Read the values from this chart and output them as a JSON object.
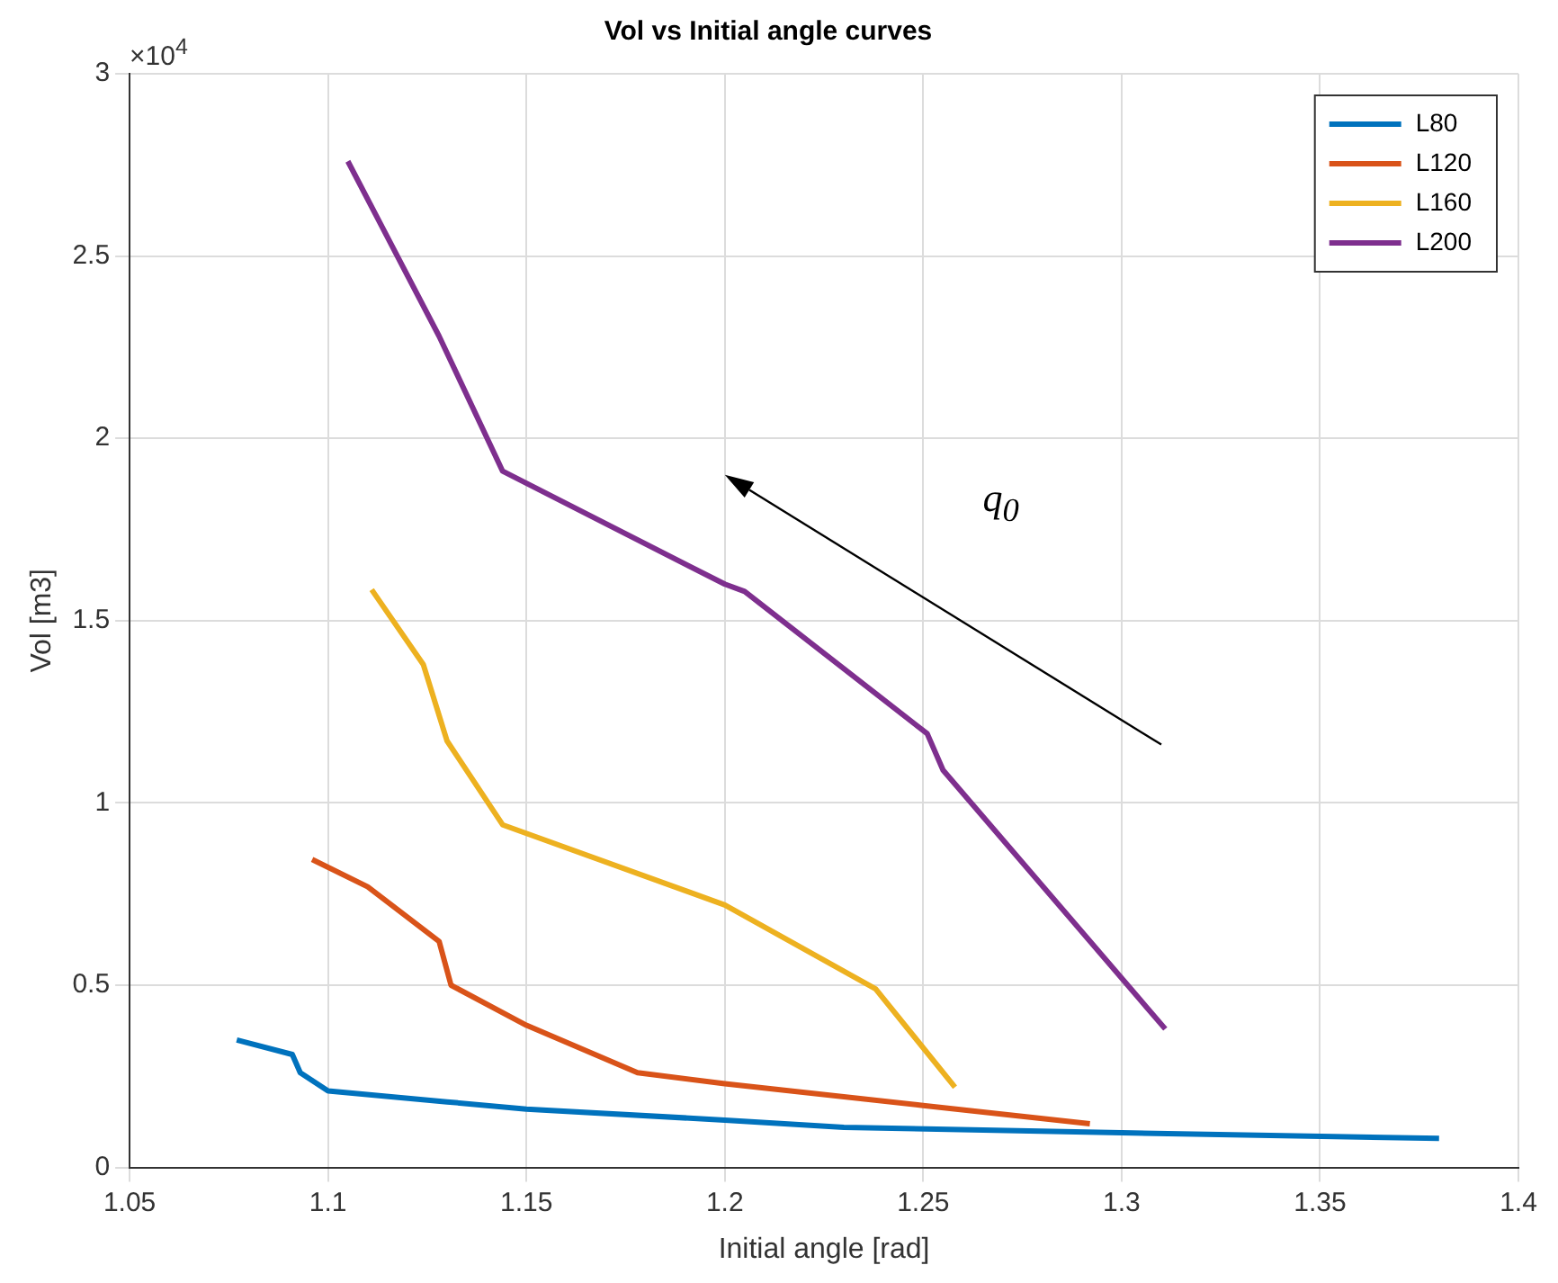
{
  "chart_data": {
    "type": "line",
    "title": "Vol vs Initial angle curves",
    "xlabel": "Initial angle [rad]",
    "ylabel": "Vol [m3]",
    "annotations": [
      "×10$^{4}$",
      "q$_{0}$"
    ],
    "xlim": [
      1.05,
      1.4
    ],
    "xticks": [
      1.05,
      1.1,
      1.15,
      1.2,
      1.25,
      1.3,
      1.35,
      1.4
    ],
    "ylim": [
      0,
      3
    ],
    "yticks": [
      0,
      0.5,
      1,
      1.5,
      2,
      2.5,
      3
    ],
    "grid": true,
    "legend": "top right",
    "marker": "none",
    "line_style": "solid",
    "series": [
      {
        "name": "L80",
        "color": "#0072bd",
        "x": [
          1.077,
          1.091,
          1.093,
          1.1,
          1.13,
          1.15,
          1.2,
          1.23,
          1.3,
          1.38
        ],
        "values": [
          0.35,
          0.31,
          0.26,
          0.21,
          0.18,
          0.16,
          0.13,
          0.11,
          0.095,
          0.08
        ]
      },
      {
        "name": "L120",
        "color": "#d95319",
        "x": [
          1.096,
          1.11,
          1.128,
          1.131,
          1.15,
          1.178,
          1.2,
          1.25,
          1.292
        ],
        "values": [
          0.845,
          0.77,
          0.62,
          0.5,
          0.39,
          0.26,
          0.23,
          0.17,
          0.12
        ]
      },
      {
        "name": "L160",
        "color": "#edb120",
        "x": [
          1.111,
          1.124,
          1.13,
          1.144,
          1.2,
          1.238,
          1.258
        ],
        "values": [
          1.585,
          1.38,
          1.17,
          0.94,
          0.72,
          0.49,
          0.22
        ]
      },
      {
        "name": "L200",
        "color": "#7e2f8e",
        "x": [
          1.105,
          1.128,
          1.144,
          1.2,
          1.205,
          1.251,
          1.255,
          1.311
        ],
        "values": [
          2.76,
          2.28,
          1.91,
          1.6,
          1.58,
          1.19,
          1.09,
          0.38
        ]
      }
    ]
  }
}
